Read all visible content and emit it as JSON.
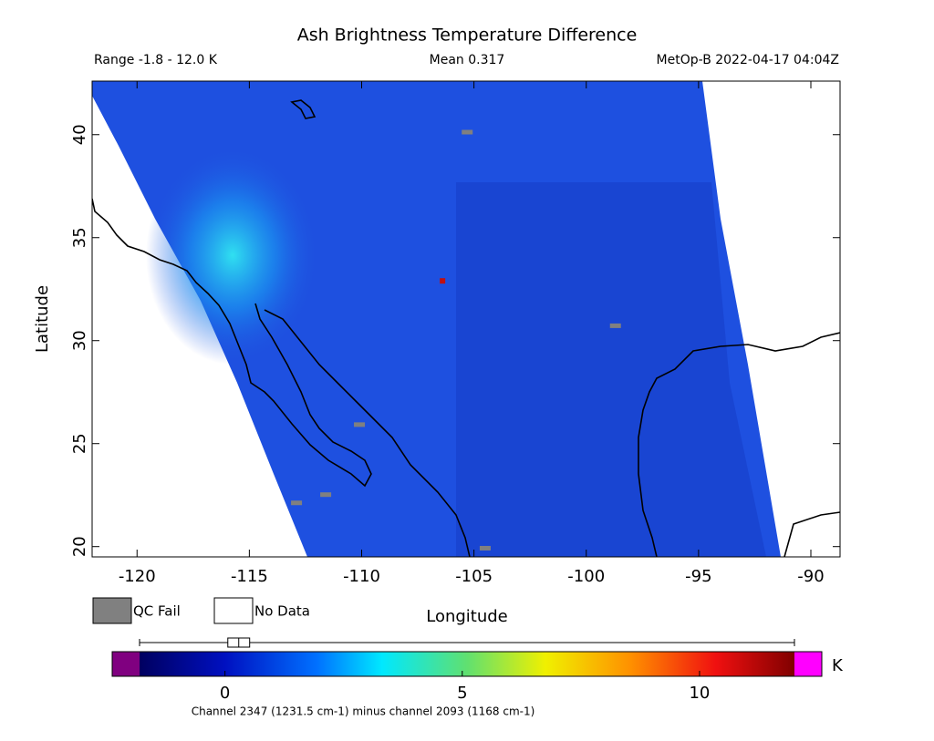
{
  "title": "Ash Brightness Temperature Difference",
  "header": {
    "range": "Range -1.8 - 12.0 K",
    "mean": "Mean 0.317",
    "satellite": "MetOp-B 2022-04-17 04:04Z"
  },
  "chart_data": {
    "type": "map",
    "xlabel": "Longitude",
    "ylabel": "Latitude",
    "xlim": [
      -122.0,
      -88.7
    ],
    "ylim": [
      19.5,
      42.6
    ],
    "xticks": [
      -120,
      -115,
      -110,
      -105,
      -100,
      -95,
      -90
    ],
    "yticks": [
      20,
      25,
      30,
      35,
      40
    ],
    "legend": [
      {
        "label": "QC Fail",
        "color": "#808080"
      },
      {
        "label": "No Data",
        "color": "#ffffff"
      }
    ],
    "qc_fail_points": {
      "lon": [
        -105.3,
        -110.1,
        -111.6,
        -112.9,
        -98.7,
        -104.5
      ],
      "lat": [
        40.1,
        25.9,
        22.5,
        22.1,
        30.7,
        19.9
      ]
    },
    "hot_pixel": {
      "lon": -106.4,
      "lat": 32.9,
      "value": 10.5,
      "color": "#c01010"
    }
  },
  "colorbar": {
    "unit": "K",
    "lim": [
      -1.8,
      12.0
    ],
    "ticks": [
      0,
      5,
      10
    ],
    "caption": "Channel 2347 (1231.5 cm-1) minus channel 2093 (1168 cm-1)",
    "boxplot": {
      "min": -1.8,
      "q1": 0.06,
      "median": 0.29,
      "q3": 0.52,
      "max": 12.0
    }
  }
}
